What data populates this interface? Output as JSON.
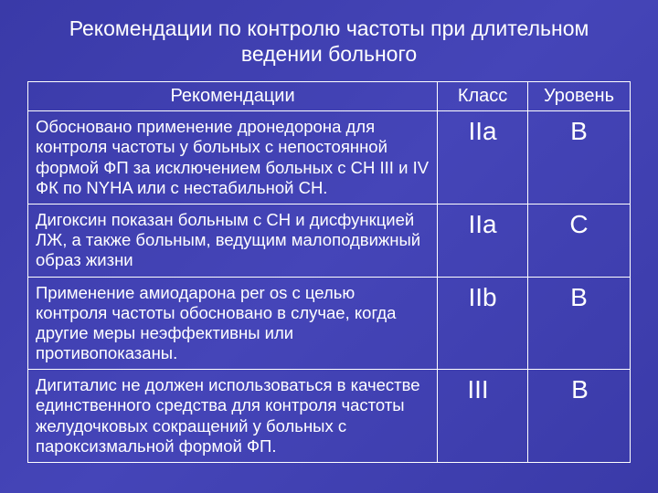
{
  "slide": {
    "title": "Рекомендации по контролю частоты при длительном ведении больного",
    "background_gradient": [
      "#3a3aa8",
      "#4545b8",
      "#3a3aa8"
    ],
    "text_color": "#ffffff",
    "border_color": "#ffffff",
    "title_fontsize": 23,
    "header_fontsize": 20,
    "cell_fontsize": 18.5,
    "value_fontsize": 28
  },
  "table": {
    "columns": [
      {
        "label": "Рекомендации",
        "width_pct": 68
      },
      {
        "label": "Класс",
        "width_pct": 15
      },
      {
        "label": "Уровень",
        "width_pct": 17
      }
    ],
    "rows": [
      {
        "rec": "Обосновано применение дронедорона для контроля частоты у больных с непостоянной формой ФП за исключением больных с СН III и IV ФК по NYHA или с нестабильной СН.",
        "class": "IIa",
        "level": "B"
      },
      {
        "rec": "Дигоксин показан больным с СН и дисфункцией ЛЖ, а также больным, ведущим малоподвижный образ жизни",
        "class": "IIa",
        "level": "C"
      },
      {
        "rec": "Применение амиодарона per os с целью контроля частоты обосновано в случае, когда другие меры неэффективны или противопоказаны.",
        "class": "IIb",
        "level": "B"
      },
      {
        "rec": "Дигиталис не должен использоваться в качестве единственного средства для контроля частоты желудочковых сокращений у больных с пароксизмальной формой ФП.",
        "class": "III",
        "level": "B"
      }
    ]
  }
}
